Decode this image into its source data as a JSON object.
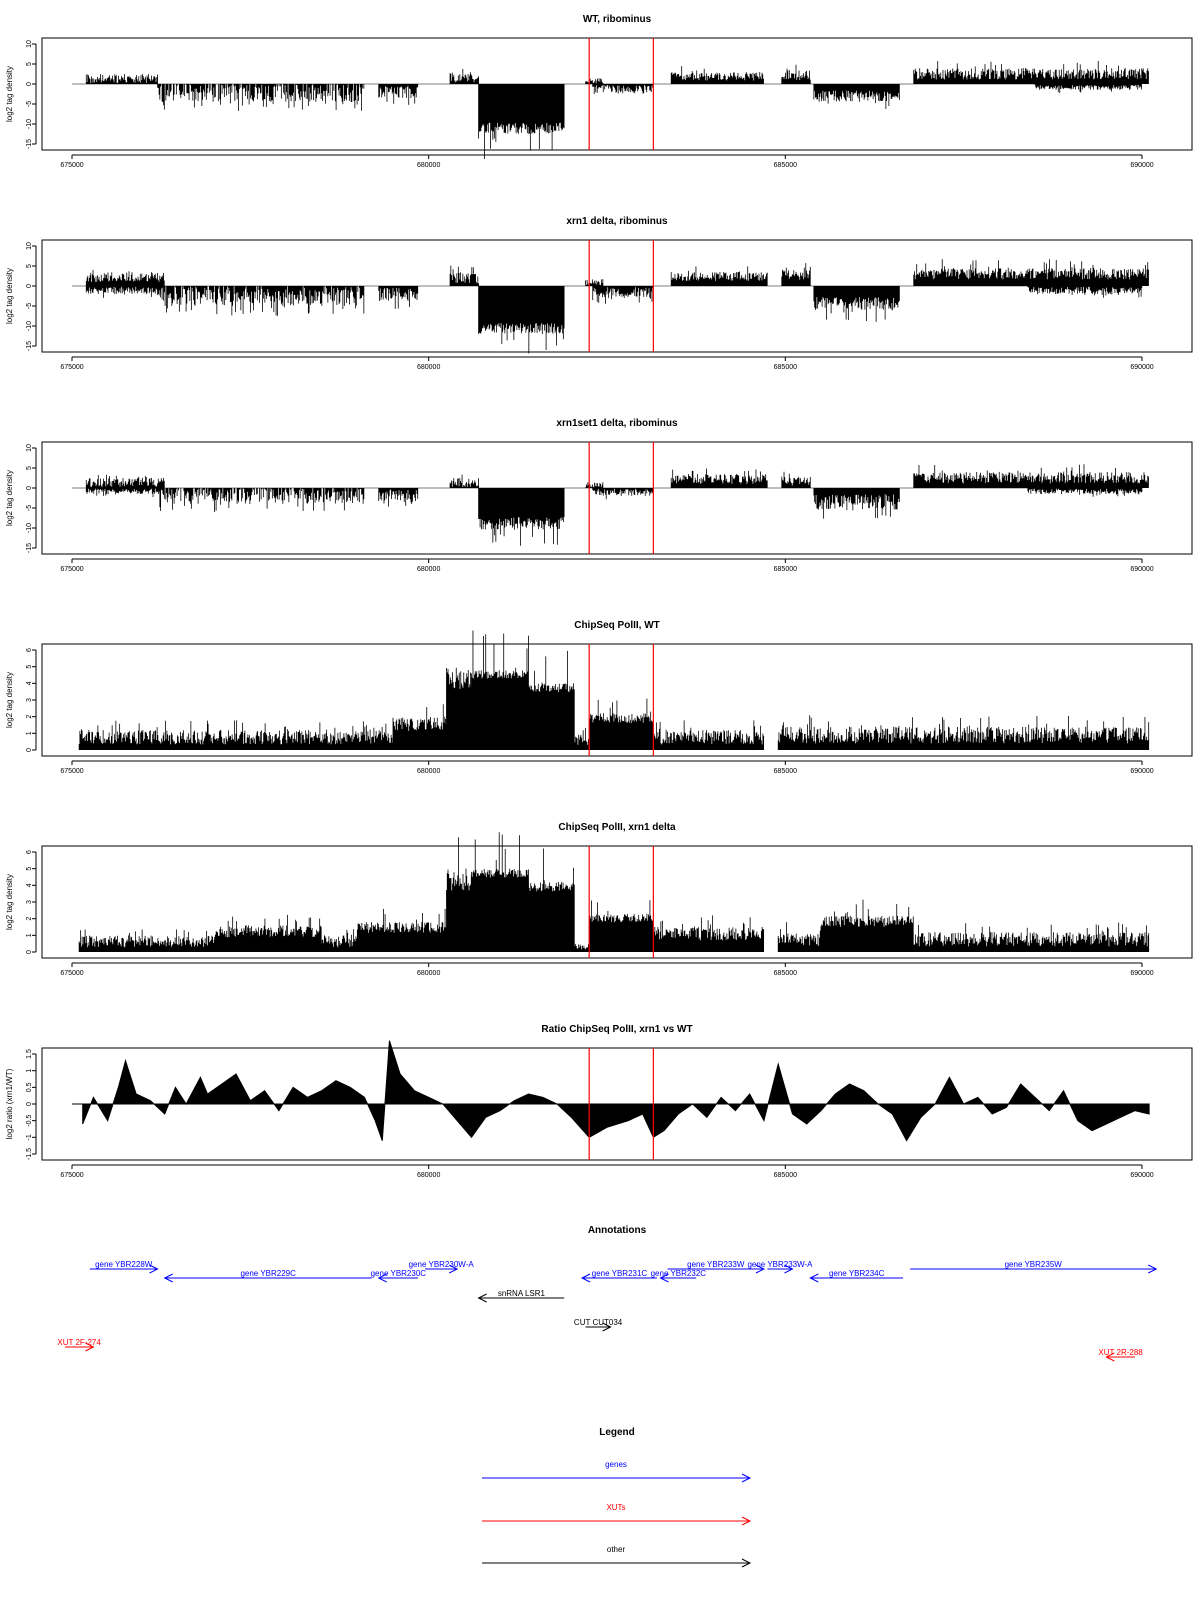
{
  "colors": {
    "gene": "#0000ff",
    "xut": "#ff0000",
    "other": "#000000",
    "marker": "#ff0000"
  },
  "chart_data": [
    {
      "type": "bar",
      "title": "WT, ribominus",
      "ylabel": "log2 tag density",
      "xlim": [
        675000,
        690000
      ],
      "ylim": [
        -15,
        10
      ],
      "xticks": [
        675000,
        680000,
        685000,
        690000
      ],
      "xtick_labels": [
        "675000",
        "680000",
        "685000",
        "690000"
      ],
      "yticks": [
        -15,
        -10,
        -5,
        0,
        5,
        10
      ],
      "ytick_labels": [
        "-15",
        "-10",
        "-5",
        "0",
        "5",
        "10"
      ],
      "markers": [
        682250,
        683150
      ],
      "segments": [
        {
          "x": [
            675200,
            676200
          ],
          "y": 2.5,
          "dir": 1,
          "var": 1.0
        },
        {
          "x": [
            676200,
            679100
          ],
          "y": 4.5,
          "dir": -1,
          "var": 1.4
        },
        {
          "x": [
            679300,
            679850
          ],
          "y": 3.5,
          "dir": -1,
          "var": 1.0
        },
        {
          "x": [
            680300,
            680700
          ],
          "y": 3.0,
          "dir": 1,
          "var": 1.0
        },
        {
          "x": [
            680700,
            681900
          ],
          "y": 12.5,
          "dir": -1,
          "var": 0.25
        },
        {
          "x": [
            682200,
            682450
          ],
          "y": 1.5,
          "dir": 1,
          "var": 1.0
        },
        {
          "x": [
            682300,
            683150
          ],
          "y": 2.5,
          "dir": -1,
          "var": 1.0
        },
        {
          "x": [
            683400,
            684000
          ],
          "y": 3.0,
          "dir": 1,
          "var": 0.8
        },
        {
          "x": [
            684000,
            684700
          ],
          "y": 3.0,
          "dir": 1,
          "var": 0.8
        },
        {
          "x": [
            684950,
            685350
          ],
          "y": 3.5,
          "dir": 1,
          "var": 0.8
        },
        {
          "x": [
            685400,
            686600
          ],
          "y": 4.5,
          "dir": -1,
          "var": 0.7
        },
        {
          "x": [
            686800,
            690100
          ],
          "y": 4.0,
          "dir": 1,
          "var": 0.8
        },
        {
          "x": [
            688500,
            690000
          ],
          "y": 1.5,
          "dir": -1,
          "var": 1.0
        }
      ]
    },
    {
      "type": "bar",
      "title": "xrn1 delta, ribominus",
      "ylabel": "log2 tag density",
      "xlim": [
        675000,
        690000
      ],
      "ylim": [
        -15,
        10
      ],
      "xticks": [
        675000,
        680000,
        685000,
        690000
      ],
      "xtick_labels": [
        "675000",
        "680000",
        "685000",
        "690000"
      ],
      "yticks": [
        -15,
        -10,
        -5,
        0,
        5,
        10
      ],
      "ytick_labels": [
        "-15",
        "-10",
        "-5",
        "0",
        "5",
        "10"
      ],
      "markers": [
        682250,
        683150
      ],
      "segments": [
        {
          "x": [
            675200,
            676300
          ],
          "y": 3.5,
          "dir": 1,
          "var": 0.8
        },
        {
          "x": [
            675200,
            676300
          ],
          "y": 2.0,
          "dir": -1,
          "var": 1.0
        },
        {
          "x": [
            676200,
            679100
          ],
          "y": 5.0,
          "dir": -1,
          "var": 1.2
        },
        {
          "x": [
            679300,
            679850
          ],
          "y": 4.0,
          "dir": -1,
          "var": 1.0
        },
        {
          "x": [
            680300,
            680700
          ],
          "y": 3.5,
          "dir": 1,
          "var": 0.9
        },
        {
          "x": [
            680700,
            681900
          ],
          "y": 12.0,
          "dir": -1,
          "var": 0.25
        },
        {
          "x": [
            682200,
            682450
          ],
          "y": 2.0,
          "dir": 1,
          "var": 1.0
        },
        {
          "x": [
            682300,
            683150
          ],
          "y": 3.0,
          "dir": -1,
          "var": 1.0
        },
        {
          "x": [
            683400,
            684750
          ],
          "y": 3.5,
          "dir": 1,
          "var": 0.7
        },
        {
          "x": [
            684950,
            685350
          ],
          "y": 4.0,
          "dir": 1,
          "var": 0.7
        },
        {
          "x": [
            685400,
            686600
          ],
          "y": 6.0,
          "dir": -1,
          "var": 0.6
        },
        {
          "x": [
            686800,
            690100
          ],
          "y": 4.5,
          "dir": 1,
          "var": 0.7
        },
        {
          "x": [
            688400,
            690000
          ],
          "y": 2.0,
          "dir": -1,
          "var": 1.0
        }
      ]
    },
    {
      "type": "bar",
      "title": "xrn1set1 delta, ribominus",
      "ylabel": "log2 tag density",
      "xlim": [
        675000,
        690000
      ],
      "ylim": [
        -15,
        10
      ],
      "xticks": [
        675000,
        680000,
        685000,
        690000
      ],
      "xtick_labels": [
        "675000",
        "680000",
        "685000",
        "690000"
      ],
      "yticks": [
        -15,
        -10,
        -5,
        0,
        5,
        10
      ],
      "ytick_labels": [
        "-15",
        "-10",
        "-5",
        "0",
        "5",
        "10"
      ],
      "markers": [
        682250,
        683150
      ],
      "segments": [
        {
          "x": [
            675200,
            676300
          ],
          "y": 2.5,
          "dir": 1,
          "var": 1.0
        },
        {
          "x": [
            675200,
            676300
          ],
          "y": 1.5,
          "dir": -1,
          "var": 1.0
        },
        {
          "x": [
            676200,
            679100
          ],
          "y": 4.0,
          "dir": -1,
          "var": 1.3
        },
        {
          "x": [
            679300,
            679850
          ],
          "y": 3.5,
          "dir": -1,
          "var": 1.0
        },
        {
          "x": [
            680300,
            680700
          ],
          "y": 2.5,
          "dir": 1,
          "var": 1.0
        },
        {
          "x": [
            680700,
            681900
          ],
          "y": 10.5,
          "dir": -1,
          "var": 0.35
        },
        {
          "x": [
            682200,
            682450
          ],
          "y": 1.5,
          "dir": 1,
          "var": 1.0
        },
        {
          "x": [
            682300,
            683150
          ],
          "y": 2.0,
          "dir": -1,
          "var": 1.0
        },
        {
          "x": [
            683400,
            684750
          ],
          "y": 3.5,
          "dir": 1,
          "var": 0.8
        },
        {
          "x": [
            684950,
            685350
          ],
          "y": 3.0,
          "dir": 1,
          "var": 0.9
        },
        {
          "x": [
            685400,
            686600
          ],
          "y": 5.5,
          "dir": -1,
          "var": 0.8
        },
        {
          "x": [
            686800,
            690100
          ],
          "y": 4.0,
          "dir": 1,
          "var": 0.8
        },
        {
          "x": [
            688400,
            690000
          ],
          "y": 1.5,
          "dir": -1,
          "var": 1.0
        }
      ]
    },
    {
      "type": "bar",
      "title": "ChipSeq PolII, WT",
      "ylabel": "log2 tag density",
      "xlim": [
        675000,
        690000
      ],
      "ylim": [
        0,
        6
      ],
      "xticks": [
        675000,
        680000,
        685000,
        690000
      ],
      "xtick_labels": [
        "675000",
        "680000",
        "685000",
        "690000"
      ],
      "yticks": [
        0,
        1,
        2,
        3,
        4,
        5,
        6
      ],
      "ytick_labels": [
        "0",
        "1",
        "2",
        "3",
        "4",
        "5",
        "6"
      ],
      "markers": [
        682250,
        683150
      ],
      "segments": [
        {
          "x": [
            675100,
            679500
          ],
          "y": 1.2,
          "dir": 1,
          "var": 0.8
        },
        {
          "x": [
            679500,
            680250
          ],
          "y": 2.0,
          "dir": 1,
          "var": 0.5
        },
        {
          "x": [
            680250,
            680600
          ],
          "y": 5.0,
          "dir": 1,
          "var": 0.3
        },
        {
          "x": [
            680600,
            681400
          ],
          "y": 4.8,
          "dir": 1,
          "var": 0.12
        },
        {
          "x": [
            681400,
            682050
          ],
          "y": 4.0,
          "dir": 1,
          "var": 0.15
        },
        {
          "x": [
            682050,
            682250
          ],
          "y": 1.0,
          "dir": 1,
          "var": 0.8
        },
        {
          "x": [
            682250,
            683150
          ],
          "y": 2.2,
          "dir": 1,
          "var": 0.3
        },
        {
          "x": [
            683150,
            684700
          ],
          "y": 1.2,
          "dir": 1,
          "var": 0.8
        },
        {
          "x": [
            684900,
            690100
          ],
          "y": 1.4,
          "dir": 1,
          "var": 0.8
        }
      ]
    },
    {
      "type": "bar",
      "title": "ChipSeq PolII, xrn1 delta",
      "ylabel": "log2 tag density",
      "xlim": [
        675000,
        690000
      ],
      "ylim": [
        0,
        6
      ],
      "xticks": [
        675000,
        680000,
        685000,
        690000
      ],
      "xtick_labels": [
        "675000",
        "680000",
        "685000",
        "690000"
      ],
      "yticks": [
        0,
        1,
        2,
        3,
        4,
        5,
        6
      ],
      "ytick_labels": [
        "0",
        "1",
        "2",
        "3",
        "4",
        "5",
        "6"
      ],
      "markers": [
        682250,
        683150
      ],
      "segments": [
        {
          "x": [
            675100,
            679000
          ],
          "y": 1.0,
          "dir": 1,
          "var": 0.8
        },
        {
          "x": [
            677000,
            678500
          ],
          "y": 1.6,
          "dir": 1,
          "var": 0.5
        },
        {
          "x": [
            679000,
            680250
          ],
          "y": 1.8,
          "dir": 1,
          "var": 0.4
        },
        {
          "x": [
            680250,
            680600
          ],
          "y": 5.0,
          "dir": 1,
          "var": 0.3
        },
        {
          "x": [
            680600,
            681400
          ],
          "y": 5.0,
          "dir": 1,
          "var": 0.12
        },
        {
          "x": [
            681400,
            682050
          ],
          "y": 4.2,
          "dir": 1,
          "var": 0.15
        },
        {
          "x": [
            682050,
            682250
          ],
          "y": 0.5,
          "dir": 1,
          "var": 0.8
        },
        {
          "x": [
            682250,
            683150
          ],
          "y": 2.3,
          "dir": 1,
          "var": 0.25
        },
        {
          "x": [
            683150,
            684700
          ],
          "y": 1.5,
          "dir": 1,
          "var": 0.6
        },
        {
          "x": [
            684900,
            690100
          ],
          "y": 1.2,
          "dir": 1,
          "var": 0.8
        },
        {
          "x": [
            685500,
            686800
          ],
          "y": 2.2,
          "dir": 1,
          "var": 0.35
        }
      ]
    },
    {
      "type": "area",
      "title": "Ratio ChipSeq PolII, xrn1 vs WT",
      "ylabel": "log2 ratio (xrn1/WT)",
      "xlim": [
        675000,
        690000
      ],
      "ylim": [
        -1.5,
        1.5
      ],
      "xticks": [
        675000,
        680000,
        685000,
        690000
      ],
      "xtick_labels": [
        "675000",
        "680000",
        "685000",
        "690000"
      ],
      "yticks": [
        -1.5,
        -1,
        -0.5,
        0,
        0.5,
        1,
        1.5
      ],
      "ytick_labels": [
        "-1.5",
        "-1",
        "-0.5",
        "0",
        "0.5",
        "1",
        "1.5"
      ],
      "markers": [
        682250,
        683150
      ],
      "x": [
        675150,
        675300,
        675500,
        675650,
        675750,
        675900,
        676100,
        676300,
        676450,
        676600,
        676800,
        676900,
        677100,
        677300,
        677500,
        677700,
        677900,
        678100,
        678300,
        678500,
        678700,
        678900,
        679100,
        679250,
        679350,
        679450,
        679600,
        679800,
        680000,
        680200,
        680400,
        680600,
        680800,
        681000,
        681200,
        681400,
        681600,
        681800,
        682000,
        682250,
        682500,
        682800,
        683000,
        683150,
        683300,
        683500,
        683700,
        683900,
        684100,
        684300,
        684500,
        684700,
        684900,
        685100,
        685300,
        685500,
        685700,
        685900,
        686100,
        686300,
        686500,
        686700,
        686900,
        687100,
        687300,
        687500,
        687700,
        687900,
        688100,
        688300,
        688500,
        688700,
        688900,
        689100,
        689300,
        689500,
        689700,
        689900,
        690100
      ],
      "y": [
        -0.6,
        0.2,
        -0.5,
        0.5,
        1.3,
        0.3,
        0.1,
        -0.3,
        0.5,
        0.0,
        0.8,
        0.3,
        0.6,
        0.9,
        0.1,
        0.4,
        -0.2,
        0.5,
        0.2,
        0.4,
        0.7,
        0.5,
        0.2,
        -0.5,
        -1.1,
        1.9,
        0.9,
        0.4,
        0.2,
        0.0,
        -0.5,
        -1.0,
        -0.4,
        -0.2,
        0.1,
        0.3,
        0.2,
        0.0,
        -0.4,
        -1.0,
        -0.7,
        -0.5,
        -0.3,
        -1.0,
        -0.8,
        -0.3,
        0.0,
        -0.4,
        0.2,
        -0.2,
        0.3,
        -0.5,
        1.2,
        -0.3,
        -0.6,
        -0.2,
        0.3,
        0.6,
        0.4,
        0.0,
        -0.3,
        -1.1,
        -0.4,
        0.0,
        0.8,
        0.0,
        0.2,
        -0.3,
        -0.1,
        0.6,
        0.2,
        -0.2,
        0.4,
        -0.5,
        -0.8,
        -0.6,
        -0.4,
        -0.2,
        -0.3
      ]
    }
  ],
  "annotations": {
    "title": "Annotations",
    "items": [
      {
        "label": "gene YBR228W",
        "type": "gene",
        "start": 675250,
        "end": 676200,
        "dir": 1,
        "row": 0
      },
      {
        "label": "gene YBR229C",
        "type": "gene",
        "start": 676300,
        "end": 679200,
        "dir": -1,
        "row": 1
      },
      {
        "label": "gene YBR230C",
        "type": "gene",
        "start": 679300,
        "end": 679850,
        "dir": -1,
        "row": 1
      },
      {
        "label": "gene YBR230W-A",
        "type": "gene",
        "start": 679950,
        "end": 680400,
        "dir": 1,
        "row": 0
      },
      {
        "label": "gene YBR231C",
        "type": "gene",
        "start": 682150,
        "end": 683200,
        "dir": -1,
        "row": 1
      },
      {
        "label": "gene YBR232C",
        "type": "gene",
        "start": 683250,
        "end": 683750,
        "dir": -1,
        "row": 1
      },
      {
        "label": "gene YBR233W",
        "type": "gene",
        "start": 683350,
        "end": 684700,
        "dir": 1,
        "row": 0
      },
      {
        "label": "gene YBR233W-A",
        "type": "gene",
        "start": 684750,
        "end": 685100,
        "dir": 1,
        "row": 0
      },
      {
        "label": "gene YBR234C",
        "type": "gene",
        "start": 685350,
        "end": 686650,
        "dir": -1,
        "row": 1
      },
      {
        "label": "gene YBR235W",
        "type": "gene",
        "start": 686750,
        "end": 690200,
        "dir": 1,
        "row": 0
      },
      {
        "label": "snRNA LSR1",
        "type": "other",
        "start": 680700,
        "end": 681900,
        "dir": -1,
        "row": 2
      },
      {
        "label": "CUT CUT034",
        "type": "other",
        "start": 682200,
        "end": 682550,
        "dir": 1,
        "row": 3
      },
      {
        "label": "XUT 2F-274",
        "type": "xut",
        "start": 674900,
        "end": 675300,
        "dir": 1,
        "row": 4
      },
      {
        "label": "XUT 2R-288",
        "type": "xut",
        "start": 689500,
        "end": 689900,
        "dir": -1,
        "row": 5
      }
    ]
  },
  "legend": {
    "title": "Legend",
    "items": [
      {
        "label": "genes",
        "type": "gene"
      },
      {
        "label": "XUTs",
        "type": "xut"
      },
      {
        "label": "other",
        "type": "other"
      }
    ]
  }
}
